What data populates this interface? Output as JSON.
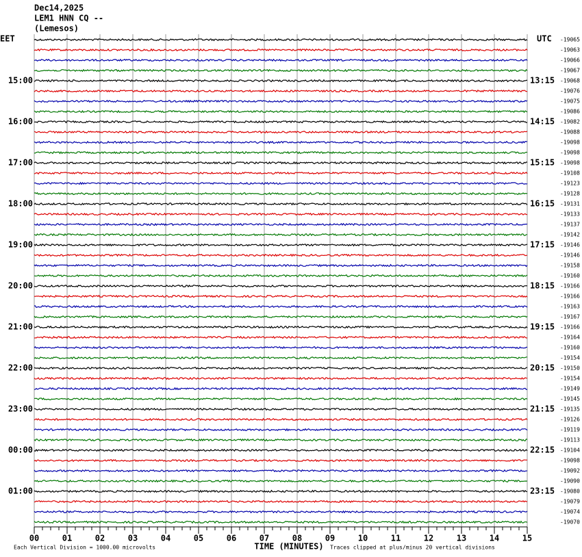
{
  "header": {
    "date": "Dec14,2025",
    "station": "LEM1 HNN CQ --",
    "location": "(Lemesos)"
  },
  "left_axis": {
    "title": "EET",
    "labels": [
      "15:00",
      "16:00",
      "17:00",
      "18:00",
      "19:00",
      "20:00",
      "21:00",
      "22:00",
      "23:00",
      "00:00",
      "01:00"
    ]
  },
  "right_axis": {
    "title": "UTC",
    "labels": [
      "13:15",
      "14:15",
      "15:15",
      "16:15",
      "17:15",
      "18:15",
      "19:15",
      "20:15",
      "21:15",
      "22:15",
      "23:15"
    ]
  },
  "trace_offsets": [
    "-19065",
    "-19063",
    "-19066",
    "-19067",
    "-19068",
    "-19076",
    "-19075",
    "-19086",
    "-19082",
    "-19088",
    "-19098",
    "-19098",
    "-19098",
    "-19108",
    "-19123",
    "-19128",
    "-19131",
    "-19133",
    "-19137",
    "-19142",
    "-19146",
    "-19146",
    "-19158",
    "-19160",
    "-19166",
    "-19166",
    "-19163",
    "-19167",
    "-19166",
    "-19164",
    "-19160",
    "-19154",
    "-19150",
    "-19154",
    "-19149",
    "-19145",
    "-19135",
    "-19126",
    "-19119",
    "-19113",
    "-19104",
    "-19098",
    "-19092",
    "-19090",
    "-19080",
    "-19079",
    "-19074",
    "-19070"
  ],
  "x_axis": {
    "labels": [
      "00",
      "01",
      "02",
      "03",
      "04",
      "05",
      "06",
      "07",
      "08",
      "09",
      "10",
      "11",
      "12",
      "13",
      "14",
      "15"
    ],
    "title": "TIME (MINUTES)"
  },
  "footer": {
    "scale_note": "Each Vertical Division = 1000.00 microvolts",
    "clip_note": "Traces clipped at plus/minus 20 vertical divisions"
  }
}
